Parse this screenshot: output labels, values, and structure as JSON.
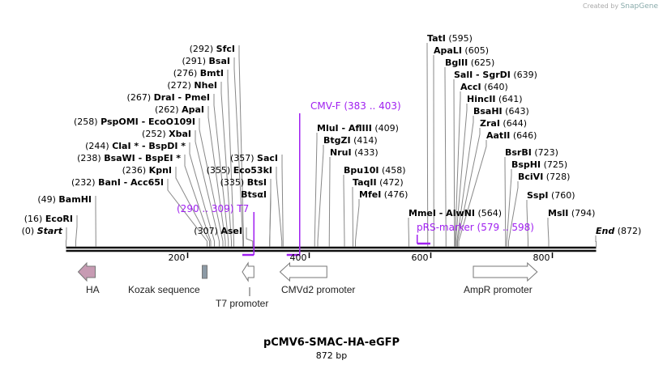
{
  "credit": {
    "prefix": "Created by",
    "brand": "SnapGene"
  },
  "title": "pCMV6-SMAC-HA-eGFP",
  "size_label": "872 bp",
  "length_bp": 872,
  "ticks": [
    {
      "bp": 200,
      "label": "200"
    },
    {
      "bp": 400,
      "label": "400"
    },
    {
      "bp": 600,
      "label": "600"
    },
    {
      "bp": 800,
      "label": "800"
    }
  ],
  "sites": [
    {
      "name": "Start",
      "pos": "(0)",
      "bp": 0
    },
    {
      "name": "EcoRI",
      "pos": "(16)",
      "bp": 16
    },
    {
      "name": "BamHI",
      "pos": "(49)",
      "bp": 49
    },
    {
      "name": "BanI  - Acc65I",
      "pos": "(232)",
      "bp": 232
    },
    {
      "name": "KpnI",
      "pos": "(236)",
      "bp": 236
    },
    {
      "name": "BsaWI  - BspEI *",
      "pos": "(238)",
      "bp": 238
    },
    {
      "name": "ClaI *  - BspDI *",
      "pos": "(244)",
      "bp": 244
    },
    {
      "name": "XbaI",
      "pos": "(252)",
      "bp": 252
    },
    {
      "name": "PspOMI  - EcoO109I",
      "pos": "(258)",
      "bp": 258
    },
    {
      "name": "ApaI",
      "pos": "(262)",
      "bp": 262
    },
    {
      "name": "DraI  - PmeI",
      "pos": "(267)",
      "bp": 267
    },
    {
      "name": "NheI",
      "pos": "(272)",
      "bp": 272
    },
    {
      "name": "BmtI",
      "pos": "(276)",
      "bp": 276
    },
    {
      "name": "BsaI",
      "pos": "(291)",
      "bp": 291
    },
    {
      "name": "SfcI",
      "pos": "(292)",
      "bp": 292
    },
    {
      "name": "AseI",
      "pos": "(307)",
      "bp": 307
    },
    {
      "name": "BtsαI",
      "pos": "",
      "bp": 335
    },
    {
      "name": "BtsI",
      "pos": "(335)",
      "bp": 335
    },
    {
      "name": "Eco53kI",
      "pos": "(355)",
      "bp": 355
    },
    {
      "name": "SacI",
      "pos": "(357)",
      "bp": 357
    },
    {
      "name": "MluI  - AflIII",
      "pos": "(409)",
      "bp": 409
    },
    {
      "name": "BtgZI",
      "pos": "(414)",
      "bp": 414
    },
    {
      "name": "NruI",
      "pos": "(433)",
      "bp": 433
    },
    {
      "name": "Bpu10I",
      "pos": "(458)",
      "bp": 458
    },
    {
      "name": "TaqII",
      "pos": "(472)",
      "bp": 472
    },
    {
      "name": "MfeI",
      "pos": "(476)",
      "bp": 476
    },
    {
      "name": "MmeI  - AlwNI",
      "pos": "(564)",
      "bp": 564
    },
    {
      "name": "TatI",
      "pos": "(595)",
      "bp": 595
    },
    {
      "name": "ApaLI",
      "pos": "(605)",
      "bp": 605
    },
    {
      "name": "BglII",
      "pos": "(625)",
      "bp": 625
    },
    {
      "name": "SalI  - SgrDI",
      "pos": "(639)",
      "bp": 639
    },
    {
      "name": "AccI",
      "pos": "(640)",
      "bp": 640
    },
    {
      "name": "HincII",
      "pos": "(641)",
      "bp": 641
    },
    {
      "name": "BsaHI",
      "pos": "(643)",
      "bp": 643
    },
    {
      "name": "ZraI",
      "pos": "(644)",
      "bp": 644
    },
    {
      "name": "AatII",
      "pos": "(646)",
      "bp": 646
    },
    {
      "name": "BsrBI",
      "pos": "(723)",
      "bp": 723
    },
    {
      "name": "BspHI",
      "pos": "(725)",
      "bp": 725
    },
    {
      "name": "BciVI",
      "pos": "(728)",
      "bp": 728
    },
    {
      "name": "SspI",
      "pos": "(760)",
      "bp": 760
    },
    {
      "name": "MslI",
      "pos": "(794)",
      "bp": 794
    },
    {
      "name": "End",
      "pos": "(872)",
      "bp": 872
    }
  ],
  "primers": [
    {
      "name": "T7",
      "range": "(290 .. 309)",
      "start": 290,
      "end": 309
    },
    {
      "name": "CMV-F",
      "range": "(383 .. 403)",
      "start": 383,
      "end": 403
    },
    {
      "name": "pRS-marker",
      "range": "(579 .. 598)",
      "start": 579,
      "end": 598
    }
  ],
  "primer_color": "#a020f0",
  "features": [
    {
      "name": "HA",
      "start": 20,
      "end": 48,
      "direction": "left",
      "color": "#c79bb3"
    },
    {
      "name": "Kozak sequence",
      "start": 224,
      "end": 232,
      "direction": "none",
      "color": "#8c9aa5"
    },
    {
      "name": "T7 promoter",
      "start": 290,
      "end": 309,
      "direction": "left",
      "color": "#ffffff"
    },
    {
      "name": "CMVd2 promoter",
      "start": 352,
      "end": 429,
      "direction": "left",
      "color": "#ffffff"
    },
    {
      "name": "AmpR promoter",
      "start": 670,
      "end": 775,
      "direction": "right",
      "color": "#ffffff"
    }
  ]
}
